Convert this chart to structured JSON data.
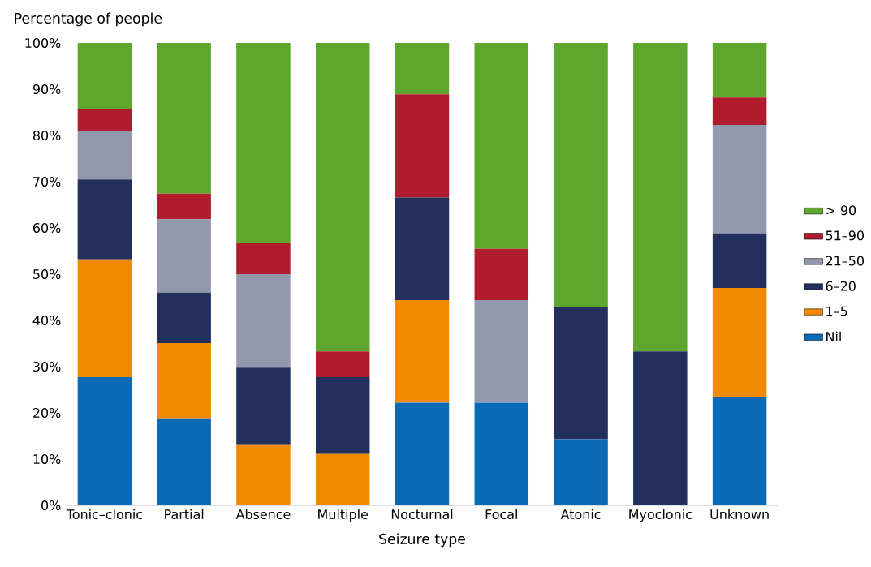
{
  "chart_data": {
    "type": "bar",
    "stacked": true,
    "xlabel": "Seizure type",
    "ylabel": "Percentage of people",
    "categories": [
      "Tonic–clonic",
      "Partial",
      "Absence",
      "Multiple",
      "Nocturnal",
      "Focal",
      "Atonic",
      "Myoclonic",
      "Unknown"
    ],
    "series": [
      {
        "name": "Nil",
        "color": "#0b6ab5",
        "values": [
          27.7,
          18.8,
          0,
          0,
          22.2,
          22.2,
          14.3,
          0,
          23.5
        ]
      },
      {
        "name": "1–5",
        "color": "#f08a00",
        "values": [
          25.5,
          16.3,
          13.2,
          11.1,
          22.2,
          0,
          0,
          0,
          23.5
        ]
      },
      {
        "name": "6–20",
        "color": "#232f5c",
        "values": [
          17.3,
          10.9,
          16.6,
          16.6,
          22.2,
          0,
          28.6,
          33.3,
          11.8
        ]
      },
      {
        "name": "21–50",
        "color": "#9298ad",
        "values": [
          10.4,
          15.9,
          20.2,
          0,
          0,
          22.2,
          0,
          0,
          23.5
        ]
      },
      {
        "name": "51–90",
        "color": "#b01c2e",
        "values": [
          4.9,
          5.5,
          6.7,
          5.6,
          22.3,
          11.1,
          0,
          0,
          5.9
        ]
      },
      {
        "name": "> 90",
        "color": "#5ea72e",
        "values": [
          14.2,
          32.6,
          43.3,
          66.7,
          11.1,
          44.5,
          57.1,
          66.7,
          11.8
        ]
      }
    ],
    "ylim": [
      0,
      100
    ],
    "yticks": [
      {
        "value": 0,
        "label": "0%"
      },
      {
        "value": 10,
        "label": "10%"
      },
      {
        "value": 20,
        "label": "20%"
      },
      {
        "value": 30,
        "label": "30%"
      },
      {
        "value": 40,
        "label": "40%"
      },
      {
        "value": 50,
        "label": "50%"
      },
      {
        "value": 60,
        "label": "60%"
      },
      {
        "value": 70,
        "label": "70%"
      },
      {
        "value": 80,
        "label": "80%"
      },
      {
        "value": 90,
        "label": "90%"
      },
      {
        "value": 100,
        "label": "100%"
      }
    ],
    "legend": "right",
    "grid": false
  }
}
